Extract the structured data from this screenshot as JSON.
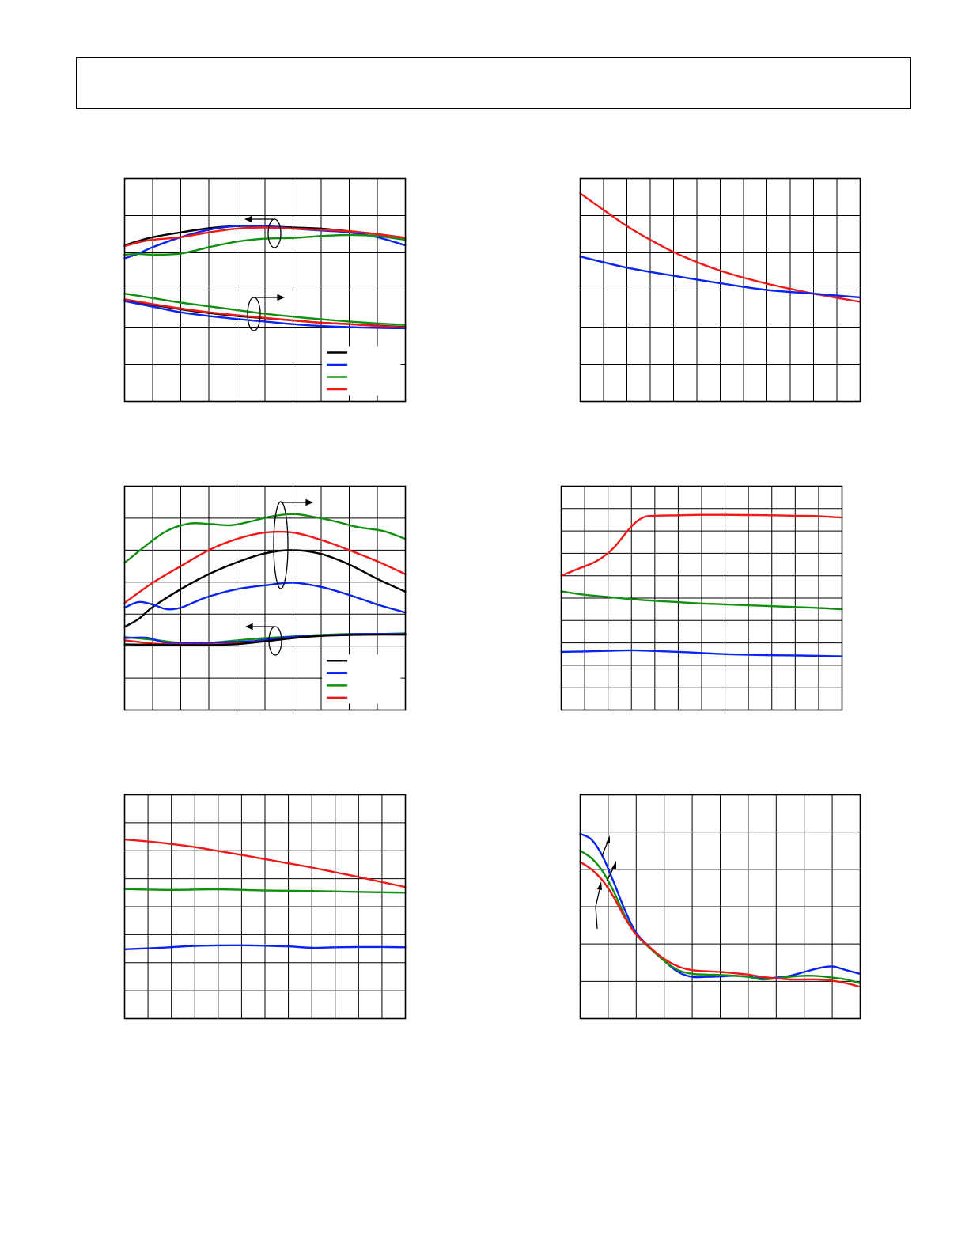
{
  "colors": {
    "black": "#000000",
    "blue": "#0a24f0",
    "green": "#109010",
    "red": "#f01818",
    "grid": "#000000"
  },
  "chart_data": [
    {
      "id": "c1",
      "type": "line",
      "grid": true,
      "xgrid": 10,
      "ygrid": 6,
      "xlim": [
        0,
        10
      ],
      "ylim": [
        0,
        6
      ],
      "legend": {
        "placement": "bottom-right",
        "colors": [
          "black",
          "blue",
          "green",
          "red"
        ]
      },
      "annotations": [
        "left-arrow-group",
        "right-arrow-group"
      ],
      "series": [
        {
          "color": "black",
          "x": [
            0,
            0.5,
            1,
            2,
            3,
            4,
            5,
            6,
            7,
            8,
            9,
            10
          ],
          "y": [
            4.2,
            4.32,
            4.42,
            4.55,
            4.66,
            4.72,
            4.71,
            4.68,
            4.65,
            4.58,
            4.5,
            4.4
          ]
        },
        {
          "color": "blue",
          "x": [
            0,
            0.5,
            1,
            2,
            3,
            4,
            5,
            6,
            7,
            8,
            9,
            10
          ],
          "y": [
            3.85,
            3.98,
            4.15,
            4.42,
            4.62,
            4.72,
            4.72,
            4.65,
            4.6,
            4.55,
            4.42,
            4.2
          ]
        },
        {
          "color": "green",
          "x": [
            0,
            0.5,
            1,
            2,
            3,
            4,
            5,
            6,
            7,
            8,
            9,
            10
          ],
          "y": [
            3.95,
            3.97,
            3.95,
            3.98,
            4.15,
            4.3,
            4.38,
            4.4,
            4.45,
            4.48,
            4.45,
            4.35
          ]
        },
        {
          "color": "red",
          "x": [
            0,
            0.5,
            1,
            2,
            3,
            4,
            5,
            6,
            7,
            8,
            9,
            10
          ],
          "y": [
            4.18,
            4.28,
            4.35,
            4.42,
            4.55,
            4.65,
            4.68,
            4.65,
            4.62,
            4.58,
            4.5,
            4.4
          ]
        },
        {
          "color": "green",
          "x": [
            0,
            1,
            2,
            3,
            4,
            5,
            6,
            7,
            8,
            9,
            10
          ],
          "y": [
            2.9,
            2.78,
            2.66,
            2.56,
            2.46,
            2.36,
            2.28,
            2.21,
            2.15,
            2.1,
            2.06
          ]
        },
        {
          "color": "black",
          "x": [
            0,
            1,
            2,
            3,
            4,
            5,
            6,
            7,
            8,
            9,
            10
          ],
          "y": [
            2.72,
            2.6,
            2.48,
            2.38,
            2.3,
            2.24,
            2.18,
            2.12,
            2.08,
            2.04,
            2.0
          ]
        },
        {
          "color": "red",
          "x": [
            0,
            1,
            2,
            3,
            4,
            5,
            6,
            7,
            8,
            9,
            10
          ],
          "y": [
            2.75,
            2.62,
            2.5,
            2.4,
            2.32,
            2.25,
            2.18,
            2.12,
            2.08,
            2.03,
            1.99
          ]
        },
        {
          "color": "blue",
          "x": [
            0,
            1,
            2,
            3,
            4,
            5,
            6,
            7,
            8,
            9,
            10
          ],
          "y": [
            2.7,
            2.55,
            2.4,
            2.3,
            2.22,
            2.15,
            2.08,
            2.03,
            2.0,
            1.98,
            1.97
          ]
        }
      ]
    },
    {
      "id": "c2",
      "type": "line",
      "grid": true,
      "xgrid": 12,
      "ygrid": 6,
      "xlim": [
        0,
        12
      ],
      "ylim": [
        0,
        6
      ],
      "series": [
        {
          "color": "red",
          "x": [
            0,
            1,
            2,
            3,
            4,
            5,
            6,
            7,
            8,
            9,
            10,
            11,
            12
          ],
          "y": [
            5.6,
            5.15,
            4.72,
            4.35,
            4.02,
            3.75,
            3.52,
            3.33,
            3.17,
            3.03,
            2.9,
            2.79,
            2.68
          ]
        },
        {
          "color": "blue",
          "x": [
            0,
            2,
            4,
            6,
            8,
            10,
            12
          ],
          "y": [
            3.9,
            3.6,
            3.38,
            3.18,
            3.0,
            2.9,
            2.8
          ]
        }
      ]
    },
    {
      "id": "c3",
      "type": "line",
      "grid": true,
      "xgrid": 10,
      "ygrid": 7,
      "xlim": [
        0,
        10
      ],
      "ylim": [
        0,
        7
      ],
      "legend": {
        "placement": "bottom-right",
        "colors": [
          "black",
          "blue",
          "green",
          "red"
        ]
      },
      "annotations": [
        "right-arrow-group",
        "left-arrow-group"
      ],
      "series": [
        {
          "color": "green",
          "x": [
            0,
            0.7,
            1.5,
            2.3,
            3,
            3.8,
            4.5,
            5.2,
            6,
            6.8,
            7.5,
            8.3,
            9.2,
            10
          ],
          "y": [
            4.6,
            5.1,
            5.6,
            5.83,
            5.82,
            5.78,
            5.9,
            6.05,
            6.13,
            6.03,
            5.9,
            5.72,
            5.6,
            5.35
          ]
        },
        {
          "color": "red",
          "x": [
            0,
            1,
            2,
            3,
            4,
            5,
            6,
            7,
            8,
            9,
            10
          ],
          "y": [
            3.35,
            3.98,
            4.5,
            5.0,
            5.35,
            5.55,
            5.55,
            5.32,
            5.0,
            4.65,
            4.25
          ]
        },
        {
          "color": "black",
          "x": [
            0,
            0.5,
            1,
            2,
            3,
            4,
            5,
            6,
            7,
            8,
            9,
            10
          ],
          "y": [
            2.6,
            2.85,
            3.22,
            3.78,
            4.25,
            4.62,
            4.9,
            5.0,
            4.88,
            4.55,
            4.1,
            3.7
          ]
        },
        {
          "color": "blue",
          "x": [
            0,
            0.5,
            1,
            1.5,
            2,
            2.5,
            3,
            4,
            5,
            6,
            7,
            8,
            9,
            10
          ],
          "y": [
            3.2,
            3.38,
            3.3,
            3.15,
            3.2,
            3.38,
            3.55,
            3.78,
            3.9,
            3.98,
            3.85,
            3.6,
            3.3,
            3.05
          ]
        },
        {
          "color": "green",
          "x": [
            0,
            1,
            2,
            3,
            4,
            5,
            6,
            7,
            8,
            9,
            10
          ],
          "y": [
            2.28,
            2.2,
            2.1,
            2.1,
            2.18,
            2.25,
            2.3,
            2.35,
            2.38,
            2.38,
            2.4
          ]
        },
        {
          "color": "blue",
          "x": [
            0,
            0.8,
            1.5,
            2.5,
            3.5,
            4.5,
            5.5,
            6.5,
            7.5,
            8.5,
            10
          ],
          "y": [
            2.25,
            2.26,
            2.1,
            2.1,
            2.12,
            2.15,
            2.25,
            2.32,
            2.35,
            2.38,
            2.38
          ]
        },
        {
          "color": "red",
          "x": [
            0,
            1,
            2,
            3,
            4,
            5,
            6,
            7,
            8,
            9,
            10
          ],
          "y": [
            2.18,
            2.08,
            2.05,
            2.05,
            2.08,
            2.15,
            2.25,
            2.32,
            2.35,
            2.36,
            2.36
          ]
        },
        {
          "color": "black",
          "x": [
            0,
            1,
            2,
            3,
            4,
            5,
            6,
            7,
            8,
            9,
            10
          ],
          "y": [
            2.05,
            2.04,
            2.03,
            2.03,
            2.06,
            2.15,
            2.25,
            2.32,
            2.35,
            2.36,
            2.36
          ]
        }
      ]
    },
    {
      "id": "c4",
      "type": "line",
      "grid": true,
      "xgrid": 12,
      "ygrid": 10,
      "xlim": [
        0,
        12
      ],
      "ylim": [
        0,
        10
      ],
      "series": [
        {
          "color": "red",
          "x": [
            0,
            0.7,
            1.5,
            2.2,
            3,
            3.5,
            4,
            5,
            6,
            7,
            8,
            9,
            10,
            11,
            12
          ],
          "y": [
            6.0,
            6.3,
            6.65,
            7.2,
            8.2,
            8.6,
            8.68,
            8.7,
            8.72,
            8.72,
            8.71,
            8.7,
            8.68,
            8.66,
            8.6
          ]
        },
        {
          "color": "green",
          "x": [
            0,
            1,
            2,
            3,
            4,
            5,
            6,
            7,
            8,
            9,
            10,
            11,
            12
          ],
          "y": [
            5.3,
            5.15,
            5.05,
            4.95,
            4.88,
            4.82,
            4.76,
            4.72,
            4.68,
            4.64,
            4.6,
            4.56,
            4.5
          ]
        },
        {
          "color": "blue",
          "x": [
            0,
            1,
            2,
            3,
            4,
            5,
            6,
            7,
            8,
            9,
            10,
            11,
            12
          ],
          "y": [
            2.6,
            2.62,
            2.65,
            2.67,
            2.64,
            2.6,
            2.55,
            2.5,
            2.47,
            2.45,
            2.44,
            2.42,
            2.4
          ]
        }
      ]
    },
    {
      "id": "c5",
      "type": "line",
      "grid": true,
      "xgrid": 12,
      "ygrid": 8,
      "xlim": [
        0,
        12
      ],
      "ylim": [
        0,
        8
      ],
      "series": [
        {
          "color": "red",
          "x": [
            0,
            1,
            2,
            3,
            4,
            5,
            6,
            7,
            8,
            9,
            10,
            11,
            12
          ],
          "y": [
            6.4,
            6.33,
            6.24,
            6.13,
            5.99,
            5.85,
            5.7,
            5.55,
            5.4,
            5.23,
            5.06,
            4.88,
            4.7
          ]
        },
        {
          "color": "green",
          "x": [
            0,
            2,
            4,
            6,
            8,
            10,
            12
          ],
          "y": [
            4.63,
            4.6,
            4.62,
            4.58,
            4.56,
            4.53,
            4.5
          ]
        },
        {
          "color": "blue",
          "x": [
            0,
            1.5,
            3,
            5,
            7,
            8,
            9,
            10.5,
            12
          ],
          "y": [
            2.48,
            2.53,
            2.6,
            2.62,
            2.58,
            2.53,
            2.55,
            2.56,
            2.55
          ]
        }
      ]
    },
    {
      "id": "c6",
      "type": "line",
      "grid": true,
      "xgrid": 10,
      "ygrid": 6,
      "xlim": [
        0,
        10
      ],
      "ylim": [
        0,
        6
      ],
      "annotations": [
        "pointer-arrows"
      ],
      "series": [
        {
          "color": "blue",
          "x": [
            0,
            0.4,
            0.8,
            1.2,
            1.6,
            2,
            2.5,
            3,
            3.5,
            4,
            4.5,
            5,
            5.5,
            6,
            6.5,
            7,
            7.5,
            8,
            8.5,
            9,
            9.5,
            10
          ],
          "y": [
            4.95,
            4.8,
            4.35,
            3.65,
            2.9,
            2.3,
            1.9,
            1.55,
            1.25,
            1.12,
            1.12,
            1.13,
            1.15,
            1.12,
            1.08,
            1.1,
            1.15,
            1.25,
            1.35,
            1.4,
            1.3,
            1.2
          ]
        },
        {
          "color": "green",
          "x": [
            0,
            0.4,
            0.8,
            1.2,
            1.6,
            2,
            2.5,
            3,
            3.5,
            4,
            4.5,
            5,
            5.5,
            6,
            6.5,
            7,
            7.5,
            8,
            8.5,
            9,
            9.5,
            10
          ],
          "y": [
            4.5,
            4.3,
            3.95,
            3.4,
            2.75,
            2.25,
            1.88,
            1.55,
            1.3,
            1.2,
            1.18,
            1.17,
            1.15,
            1.12,
            1.05,
            1.08,
            1.12,
            1.15,
            1.14,
            1.1,
            1.05,
            0.95
          ]
        },
        {
          "color": "red",
          "x": [
            0,
            0.4,
            0.8,
            1.2,
            1.6,
            2,
            2.5,
            3,
            3.5,
            4,
            4.5,
            5,
            5.5,
            6,
            6.5,
            7,
            7.5,
            8,
            8.5,
            9,
            9.5,
            10
          ],
          "y": [
            4.2,
            4.0,
            3.7,
            3.25,
            2.7,
            2.25,
            1.9,
            1.6,
            1.4,
            1.3,
            1.27,
            1.25,
            1.22,
            1.18,
            1.12,
            1.08,
            1.05,
            1.05,
            1.05,
            1.02,
            0.95,
            0.85
          ]
        }
      ]
    }
  ]
}
